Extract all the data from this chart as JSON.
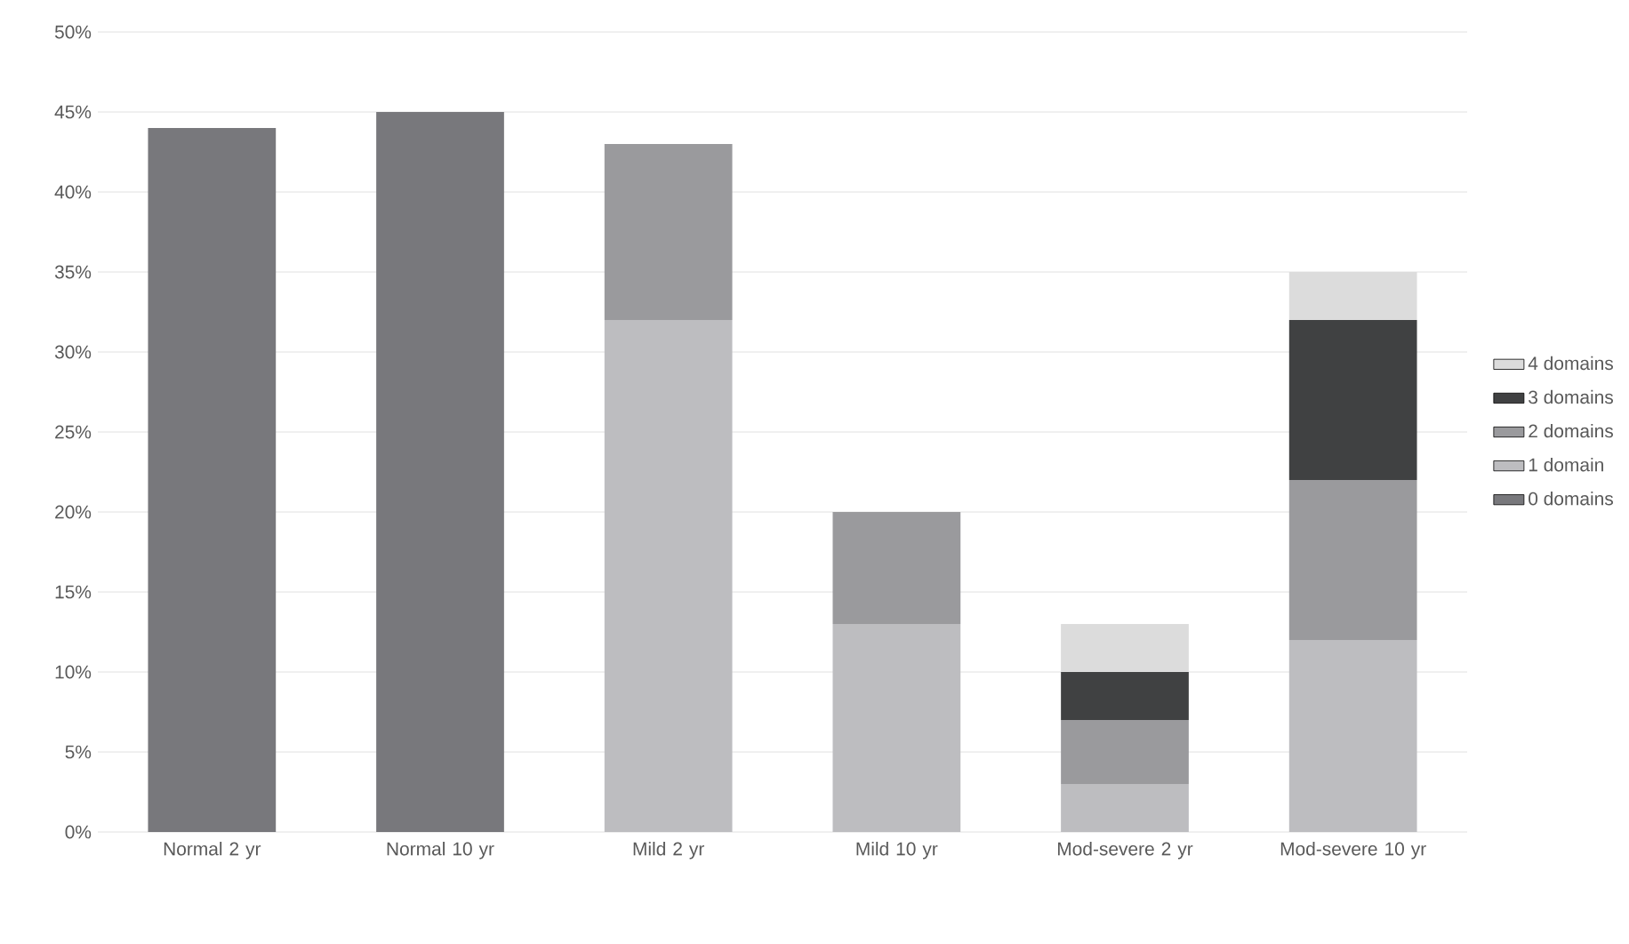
{
  "chart_data": {
    "type": "bar",
    "stacked": true,
    "categories": [
      "Normal 2 yr",
      "Normal 10 yr",
      "Mild 2 yr",
      "Mild 10 yr",
      "Mod-severe 2 yr",
      "Mod-severe 10 yr"
    ],
    "series": [
      {
        "name": "0 domains",
        "color": "#78787c",
        "values": [
          44,
          45,
          null,
          null,
          null,
          null
        ]
      },
      {
        "name": "1 domain",
        "color": "#bdbdc0",
        "values": [
          null,
          null,
          32,
          13,
          3,
          12
        ]
      },
      {
        "name": "2 domains",
        "color": "#9a9a9d",
        "values": [
          null,
          null,
          11,
          7,
          4,
          10
        ]
      },
      {
        "name": "3 domains",
        "color": "#404142",
        "values": [
          null,
          null,
          null,
          null,
          3,
          10
        ]
      },
      {
        "name": "4 domains",
        "color": "#dcdcdc",
        "values": [
          null,
          null,
          null,
          null,
          3,
          3
        ]
      }
    ],
    "ylim": [
      0,
      50
    ],
    "yticks": [
      {
        "value": 0,
        "label": "0%"
      },
      {
        "value": 5,
        "label": "5%"
      },
      {
        "value": 10,
        "label": "10%"
      },
      {
        "value": 15,
        "label": "15%"
      },
      {
        "value": 20,
        "label": "20%"
      },
      {
        "value": 25,
        "label": "25%"
      },
      {
        "value": 30,
        "label": "30%"
      },
      {
        "value": 35,
        "label": "35%"
      },
      {
        "value": 40,
        "label": "40%"
      },
      {
        "value": 45,
        "label": "45%"
      },
      {
        "value": 50,
        "label": "50%"
      }
    ],
    "grid": "y",
    "legend": "right"
  }
}
